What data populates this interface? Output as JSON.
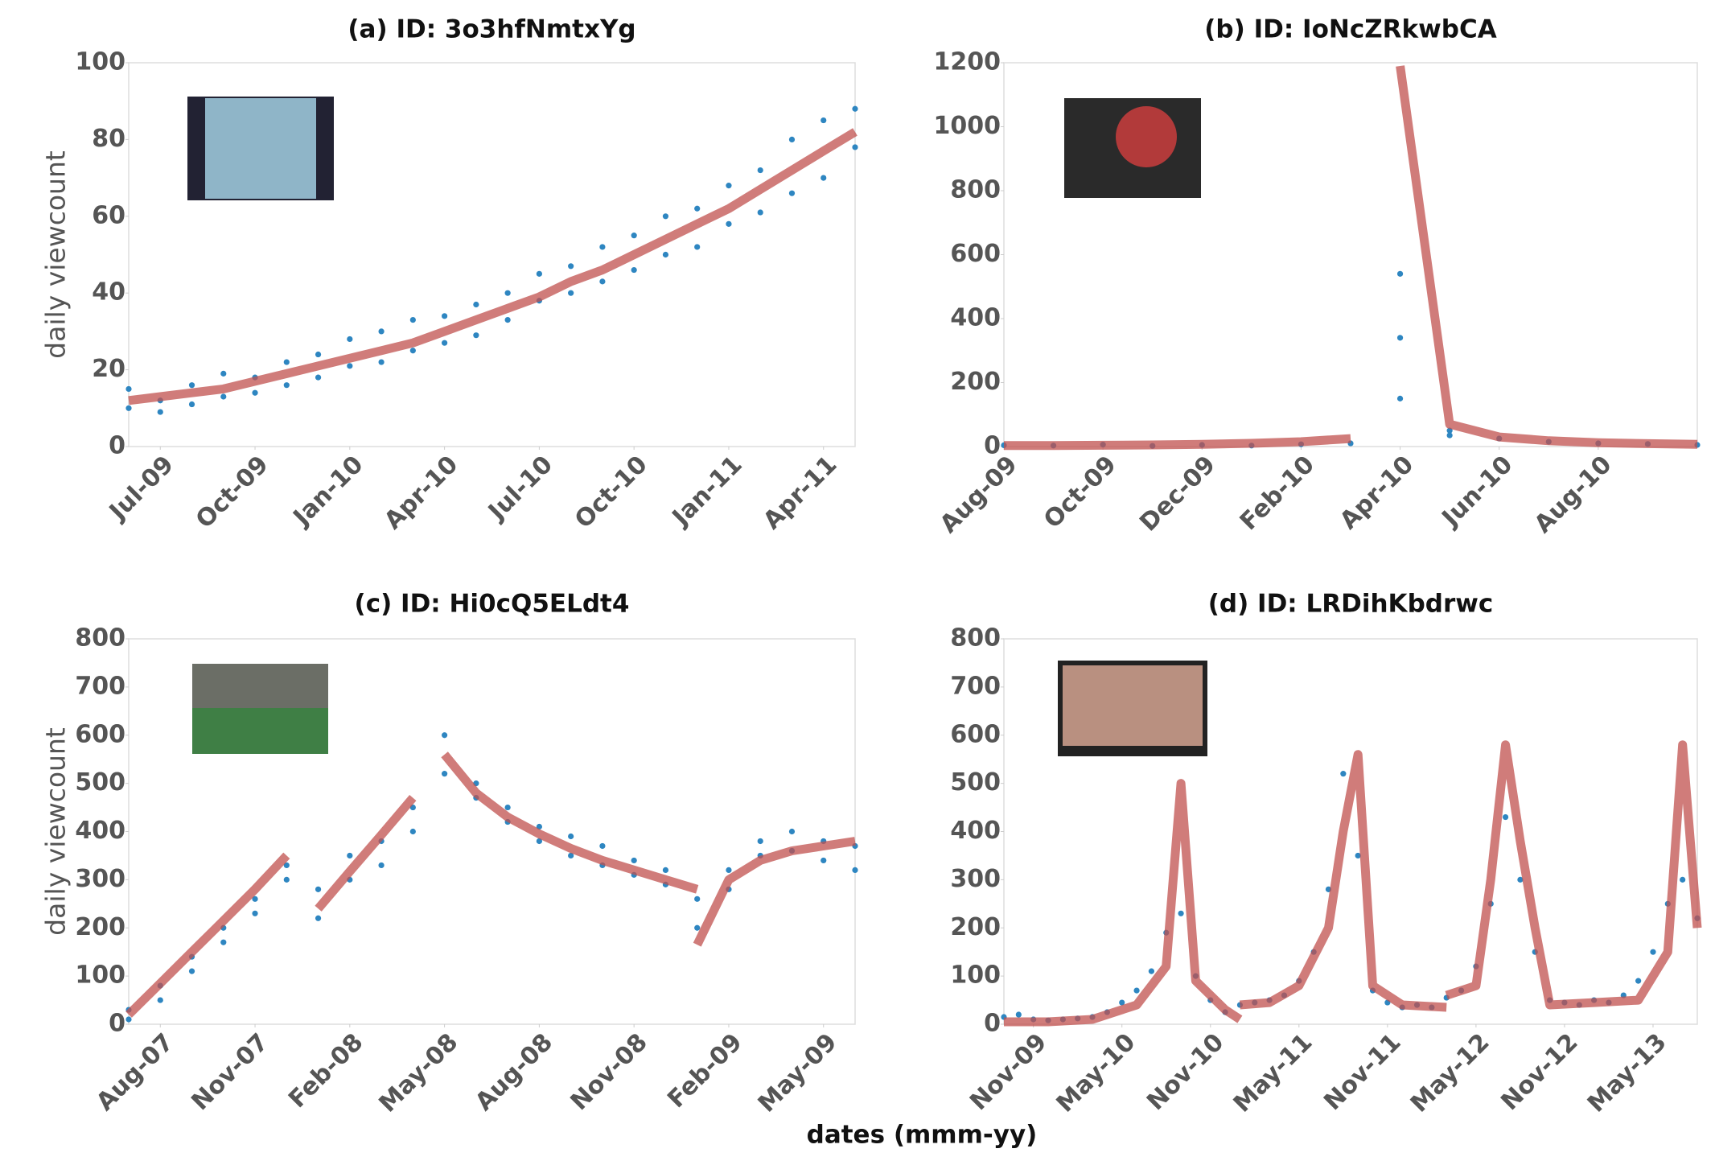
{
  "xlabel": "dates (mmm-yy)",
  "chart_data": [
    {
      "type": "scatter",
      "title": "(a) ID: 3o3hfNmtxYg",
      "ylabel": "daily viewcount",
      "color": "#2e86c1",
      "xlim": [
        "2009-06",
        "2011-05"
      ],
      "ylim": [
        0,
        100
      ],
      "yticks": [
        0,
        20,
        40,
        60,
        80,
        100
      ],
      "xticks": [
        {
          "value": "2009-07",
          "label": "Jul-09"
        },
        {
          "value": "2009-10",
          "label": "Oct-09"
        },
        {
          "value": "2010-01",
          "label": "Jan-10"
        },
        {
          "value": "2010-04",
          "label": "Apr-10"
        },
        {
          "value": "2010-07",
          "label": "Jul-10"
        },
        {
          "value": "2010-10",
          "label": "Oct-10"
        },
        {
          "value": "2011-01",
          "label": "Jan-11"
        },
        {
          "value": "2011-04",
          "label": "Apr-11"
        }
      ],
      "x": [
        "2009-06",
        "2009-06",
        "2009-07",
        "2009-07",
        "2009-08",
        "2009-08",
        "2009-09",
        "2009-09",
        "2009-10",
        "2009-10",
        "2009-11",
        "2009-11",
        "2009-12",
        "2009-12",
        "2010-01",
        "2010-01",
        "2010-02",
        "2010-02",
        "2010-03",
        "2010-03",
        "2010-04",
        "2010-04",
        "2010-05",
        "2010-05",
        "2010-06",
        "2010-06",
        "2010-07",
        "2010-07",
        "2010-08",
        "2010-08",
        "2010-09",
        "2010-09",
        "2010-10",
        "2010-10",
        "2010-11",
        "2010-11",
        "2010-12",
        "2010-12",
        "2011-01",
        "2011-01",
        "2011-02",
        "2011-02",
        "2011-03",
        "2011-03",
        "2011-04",
        "2011-04",
        "2011-05",
        "2011-05"
      ],
      "values": [
        10,
        15,
        12,
        9,
        16,
        11,
        13,
        19,
        18,
        14,
        22,
        16,
        24,
        18,
        21,
        28,
        30,
        22,
        25,
        33,
        34,
        27,
        29,
        37,
        40,
        33,
        38,
        45,
        47,
        40,
        43,
        52,
        55,
        46,
        50,
        60,
        62,
        52,
        58,
        68,
        72,
        61,
        66,
        80,
        85,
        70,
        78,
        88
      ],
      "fit": {
        "color": "#c0504d",
        "x": [
          "2009-06",
          "2009-07",
          "2009-08",
          "2009-09",
          "2009-10",
          "2009-11",
          "2009-12",
          "2010-01",
          "2010-02",
          "2010-03",
          "2010-04",
          "2010-05",
          "2010-06",
          "2010-07",
          "2010-08",
          "2010-09",
          "2010-10",
          "2010-11",
          "2010-12",
          "2011-01",
          "2011-02",
          "2011-03",
          "2011-04",
          "2011-05"
        ],
        "values": [
          12,
          13,
          14,
          15,
          17,
          19,
          21,
          23,
          25,
          27,
          30,
          33,
          36,
          39,
          43,
          46,
          50,
          54,
          58,
          62,
          67,
          72,
          77,
          82
        ]
      }
    },
    {
      "type": "scatter",
      "title": "(b) ID: IoNcZRkwbCA",
      "color": "#2e86c1",
      "xlim": [
        "2009-08",
        "2010-10"
      ],
      "ylim": [
        0,
        1200
      ],
      "yticks": [
        0,
        200,
        400,
        600,
        800,
        1000,
        1200
      ],
      "xticks": [
        {
          "value": "2009-08",
          "label": "Aug-09"
        },
        {
          "value": "2009-10",
          "label": "Oct-09"
        },
        {
          "value": "2009-12",
          "label": "Dec-09"
        },
        {
          "value": "2010-02",
          "label": "Feb-10"
        },
        {
          "value": "2010-04",
          "label": "Apr-10"
        },
        {
          "value": "2010-06",
          "label": "Jun-10"
        },
        {
          "value": "2010-08",
          "label": "Aug-10"
        }
      ],
      "x": [
        "2009-08",
        "2009-09",
        "2009-10",
        "2009-11",
        "2009-12",
        "2010-01",
        "2010-02",
        "2010-03",
        "2010-04",
        "2010-04",
        "2010-04",
        "2010-05",
        "2010-05",
        "2010-06",
        "2010-07",
        "2010-08",
        "2010-09",
        "2010-10"
      ],
      "values": [
        4,
        3,
        6,
        2,
        5,
        3,
        7,
        10,
        540,
        340,
        150,
        50,
        35,
        25,
        15,
        10,
        8,
        5
      ],
      "fit": {
        "color": "#c0504d",
        "x": [
          "2009-08",
          "2009-09",
          "2009-10",
          "2009-11",
          "2009-12",
          "2010-01",
          "2010-02",
          "2010-03",
          null,
          "2010-04",
          "2010-05",
          "2010-06",
          "2010-07",
          "2010-08",
          "2010-09",
          "2010-10"
        ],
        "values": [
          3,
          3,
          4,
          5,
          7,
          10,
          15,
          25,
          null,
          1190,
          70,
          30,
          18,
          12,
          9,
          7
        ]
      }
    },
    {
      "type": "scatter",
      "title": "(c) ID: Hi0cQ5ELdt4",
      "ylabel": "daily viewcount",
      "color": "#2e86c1",
      "xlim": [
        "2007-07",
        "2009-06"
      ],
      "ylim": [
        0,
        800
      ],
      "yticks": [
        0,
        100,
        200,
        300,
        400,
        500,
        600,
        700,
        800
      ],
      "xticks": [
        {
          "value": "2007-08",
          "label": "Aug-07"
        },
        {
          "value": "2007-11",
          "label": "Nov-07"
        },
        {
          "value": "2008-02",
          "label": "Feb-08"
        },
        {
          "value": "2008-05",
          "label": "May-08"
        },
        {
          "value": "2008-08",
          "label": "Aug-08"
        },
        {
          "value": "2008-11",
          "label": "Nov-08"
        },
        {
          "value": "2009-02",
          "label": "Feb-09"
        },
        {
          "value": "2009-05",
          "label": "May-09"
        }
      ],
      "x": [
        "2007-07",
        "2007-07",
        "2007-08",
        "2007-08",
        "2007-09",
        "2007-09",
        "2007-10",
        "2007-10",
        "2007-11",
        "2007-11",
        "2007-12",
        "2007-12",
        "2008-01",
        "2008-01",
        "2008-02",
        "2008-02",
        "2008-03",
        "2008-03",
        "2008-04",
        "2008-04",
        "2008-05",
        "2008-05",
        "2008-06",
        "2008-06",
        "2008-07",
        "2008-07",
        "2008-08",
        "2008-08",
        "2008-09",
        "2008-09",
        "2008-10",
        "2008-10",
        "2008-11",
        "2008-11",
        "2008-12",
        "2008-12",
        "2009-01",
        "2009-01",
        "2009-02",
        "2009-02",
        "2009-03",
        "2009-03",
        "2009-04",
        "2009-04",
        "2009-05",
        "2009-05",
        "2009-06",
        "2009-06"
      ],
      "values": [
        30,
        10,
        80,
        50,
        140,
        110,
        200,
        170,
        260,
        230,
        330,
        300,
        220,
        280,
        300,
        350,
        380,
        330,
        450,
        400,
        520,
        600,
        470,
        500,
        420,
        450,
        380,
        410,
        350,
        390,
        330,
        370,
        310,
        340,
        290,
        320,
        260,
        200,
        320,
        280,
        350,
        380,
        360,
        400,
        380,
        340,
        370,
        320
      ],
      "fit": {
        "color": "#c0504d",
        "x": [
          "2007-07",
          "2007-08",
          "2007-09",
          "2007-10",
          "2007-11",
          "2007-12",
          null,
          "2008-01",
          "2008-02",
          "2008-03",
          "2008-04",
          null,
          "2008-05",
          "2008-06",
          "2008-07",
          "2008-08",
          "2008-09",
          "2008-10",
          "2008-11",
          "2008-12",
          "2009-01",
          null,
          "2009-01",
          "2009-02",
          "2009-03",
          "2009-04",
          "2009-05",
          "2009-06"
        ],
        "values": [
          20,
          85,
          150,
          215,
          280,
          350,
          null,
          240,
          317,
          393,
          470,
          null,
          560,
          480,
          430,
          395,
          365,
          340,
          320,
          300,
          280,
          null,
          165,
          300,
          340,
          360,
          370,
          380
        ]
      }
    },
    {
      "type": "scatter",
      "title": "(d) ID: LRDihKbdrwc",
      "color": "#2e86c1",
      "xlim": [
        "2009-09",
        "2013-08"
      ],
      "ylim": [
        0,
        800
      ],
      "yticks": [
        0,
        100,
        200,
        300,
        400,
        500,
        600,
        700,
        800
      ],
      "xticks": [
        {
          "value": "2009-11",
          "label": "Nov-09"
        },
        {
          "value": "2010-05",
          "label": "May-10"
        },
        {
          "value": "2010-11",
          "label": "Nov-10"
        },
        {
          "value": "2011-05",
          "label": "May-11"
        },
        {
          "value": "2011-11",
          "label": "Nov-11"
        },
        {
          "value": "2012-05",
          "label": "May-12"
        },
        {
          "value": "2012-11",
          "label": "Nov-12"
        },
        {
          "value": "2013-05",
          "label": "May-13"
        }
      ],
      "x": [
        "2009-09",
        "2009-10",
        "2009-11",
        "2009-12",
        "2010-01",
        "2010-02",
        "2010-03",
        "2010-04",
        "2010-05",
        "2010-06",
        "2010-07",
        "2010-08",
        "2010-09",
        "2010-10",
        "2010-11",
        "2010-12",
        "2011-01",
        "2011-02",
        "2011-03",
        "2011-04",
        "2011-05",
        "2011-06",
        "2011-07",
        "2011-08",
        "2011-09",
        "2011-10",
        "2011-11",
        "2011-12",
        "2012-01",
        "2012-02",
        "2012-03",
        "2012-04",
        "2012-05",
        "2012-06",
        "2012-07",
        "2012-08",
        "2012-09",
        "2012-10",
        "2012-11",
        "2012-12",
        "2013-01",
        "2013-02",
        "2013-03",
        "2013-04",
        "2013-05",
        "2013-06",
        "2013-07",
        "2013-08"
      ],
      "values": [
        15,
        20,
        10,
        8,
        10,
        12,
        15,
        25,
        45,
        70,
        110,
        190,
        230,
        100,
        50,
        25,
        40,
        45,
        50,
        60,
        90,
        150,
        280,
        520,
        350,
        70,
        45,
        35,
        40,
        35,
        55,
        70,
        120,
        250,
        430,
        300,
        150,
        50,
        45,
        40,
        50,
        45,
        60,
        90,
        150,
        250,
        300,
        220
      ],
      "fit": {
        "color": "#c0504d",
        "x": [
          "2009-09",
          "2009-12",
          "2010-03",
          "2010-06",
          "2010-08",
          "2010-09",
          "2010-10",
          "2010-12",
          "2011-01",
          null,
          "2011-01",
          "2011-03",
          "2011-05",
          "2011-07",
          "2011-08",
          "2011-09",
          "2011-10",
          "2011-12",
          "2012-03",
          null,
          "2012-03",
          "2012-05",
          "2012-06",
          "2012-07",
          "2012-08",
          "2012-09",
          "2012-10",
          "2013-01",
          "2013-04",
          "2013-06",
          "2013-07",
          "2013-08"
        ],
        "values": [
          5,
          5,
          10,
          40,
          120,
          500,
          90,
          30,
          10,
          null,
          40,
          45,
          80,
          200,
          400,
          560,
          80,
          40,
          35,
          null,
          60,
          80,
          300,
          580,
          380,
          200,
          40,
          45,
          50,
          150,
          580,
          200
        ]
      }
    }
  ]
}
